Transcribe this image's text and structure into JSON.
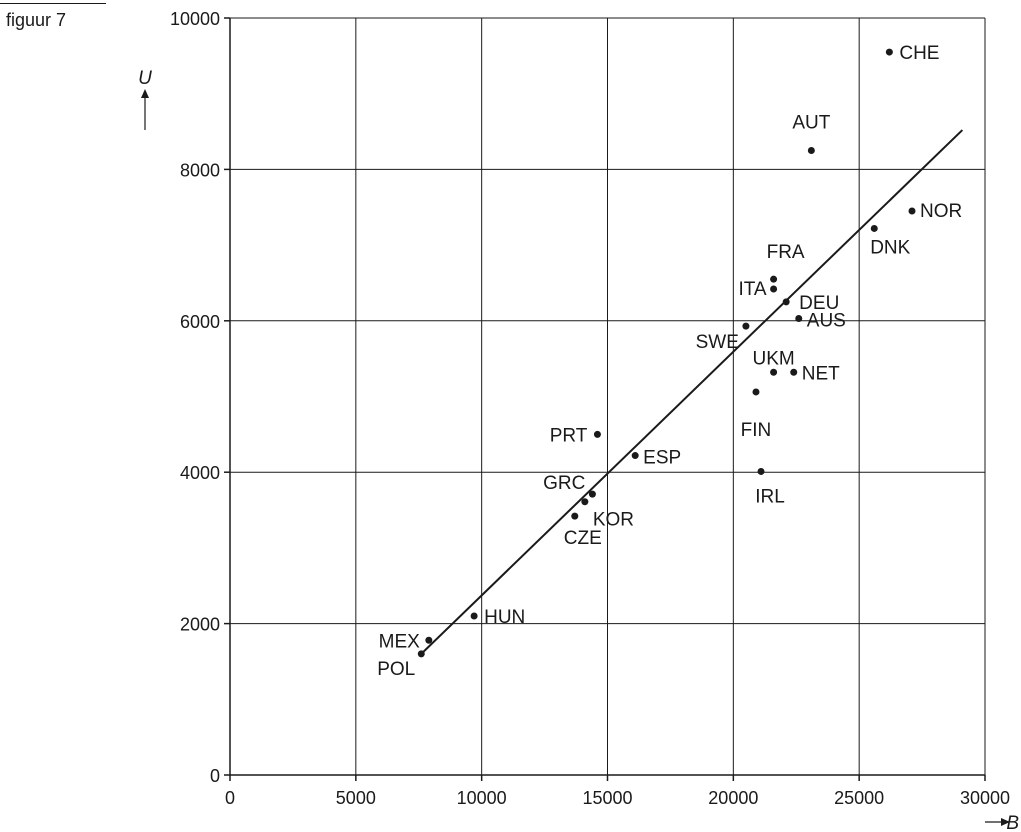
{
  "figure_label": "figuur 7",
  "chart_data": {
    "type": "scatter",
    "title": "",
    "xlabel": "B",
    "ylabel": "U",
    "xlim": [
      0,
      30000
    ],
    "ylim": [
      0,
      10000
    ],
    "x_ticks": [
      0,
      5000,
      10000,
      15000,
      20000,
      25000,
      30000
    ],
    "y_ticks": [
      0,
      2000,
      4000,
      6000,
      8000,
      10000
    ],
    "grid": true,
    "points": [
      {
        "label": "CHE",
        "x": 26200,
        "y": 9550
      },
      {
        "label": "AUT",
        "x": 23100,
        "y": 8250
      },
      {
        "label": "NOR",
        "x": 27100,
        "y": 7450
      },
      {
        "label": "DNK",
        "x": 25600,
        "y": 7220
      },
      {
        "label": "FRA",
        "x": 21600,
        "y": 6550
      },
      {
        "label": "ITA",
        "x": 21600,
        "y": 6420
      },
      {
        "label": "DEU",
        "x": 22100,
        "y": 6250
      },
      {
        "label": "AUS",
        "x": 22600,
        "y": 6030
      },
      {
        "label": "SWE",
        "x": 20500,
        "y": 5930
      },
      {
        "label": "UKM",
        "x": 21600,
        "y": 5320
      },
      {
        "label": "NET",
        "x": 22400,
        "y": 5320
      },
      {
        "label": "FIN",
        "x": 20900,
        "y": 5060
      },
      {
        "label": "PRT",
        "x": 14600,
        "y": 4500
      },
      {
        "label": "ESP",
        "x": 16100,
        "y": 4220
      },
      {
        "label": "IRL",
        "x": 21100,
        "y": 4010
      },
      {
        "label": "GRC",
        "x": 14400,
        "y": 3710
      },
      {
        "label": "KOR",
        "x": 14100,
        "y": 3610
      },
      {
        "label": "CZE",
        "x": 13700,
        "y": 3420
      },
      {
        "label": "HUN",
        "x": 9700,
        "y": 2100
      },
      {
        "label": "MEX",
        "x": 7900,
        "y": 1780
      },
      {
        "label": "POL",
        "x": 7600,
        "y": 1600
      }
    ],
    "trendline": {
      "x": [
        7600,
        29100
      ],
      "y": [
        1600,
        8520
      ]
    }
  }
}
